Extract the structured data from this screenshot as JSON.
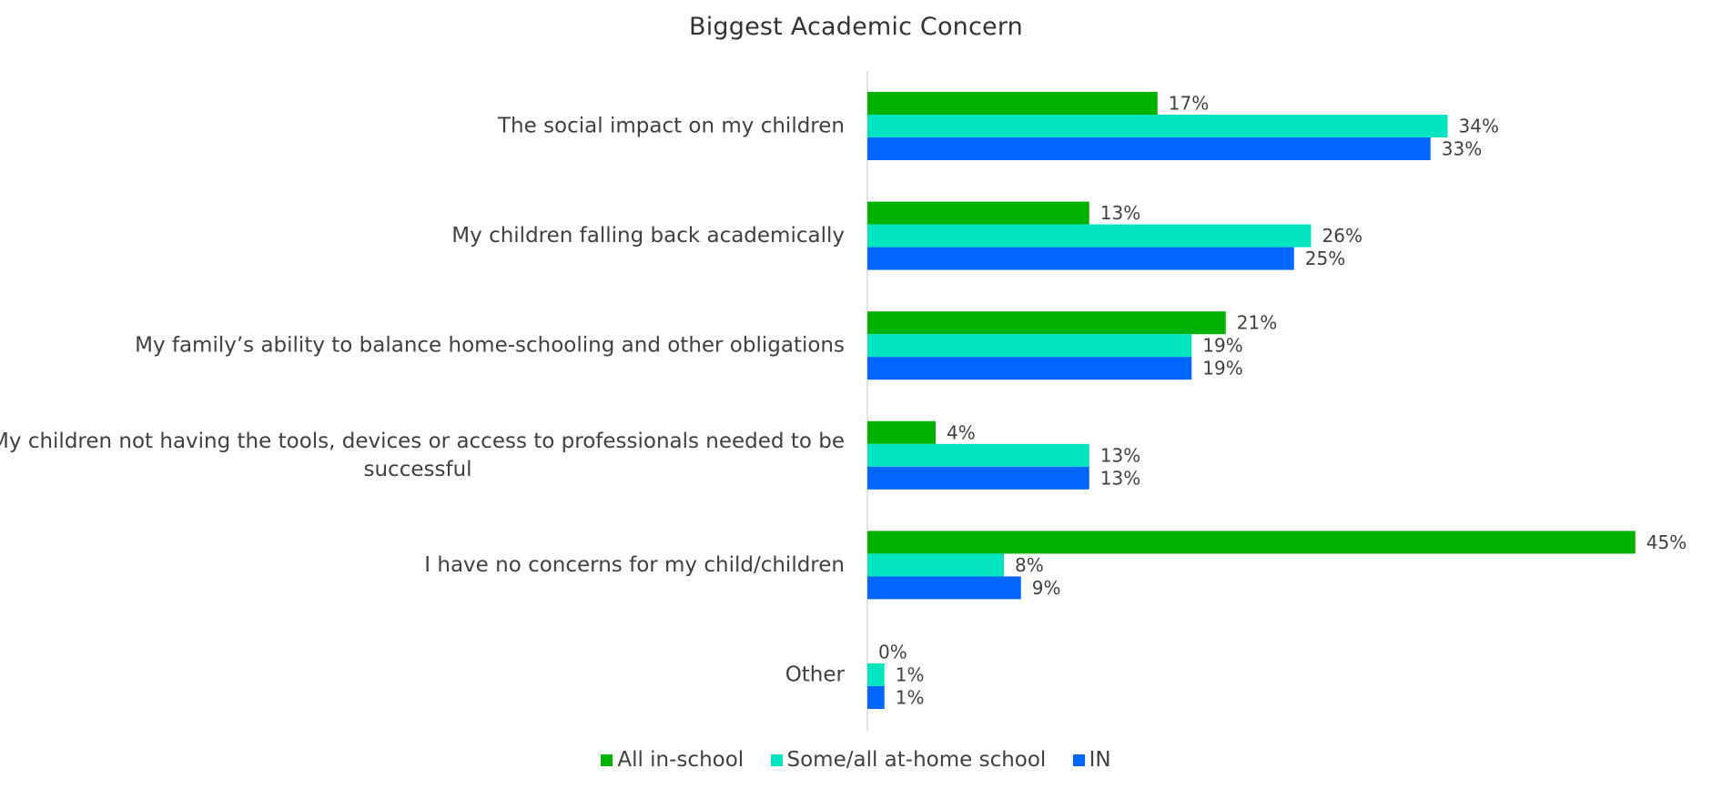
{
  "chart_data": {
    "type": "bar",
    "orientation": "horizontal",
    "title": "Biggest Academic Concern",
    "categories": [
      "The social impact on my children",
      "My children falling back academically",
      "My family’s ability to balance home-schooling and other obligations",
      "My children not having the tools, devices or access to professionals needed to be successful",
      "I have no concerns for my child/children",
      "Other"
    ],
    "category_lines": [
      [
        "The social impact on my children"
      ],
      [
        "My children falling back academically"
      ],
      [
        "My family’s ability to balance home-schooling and other obligations"
      ],
      [
        "My children not having the tools, devices or access to professionals needed to be",
        "successful"
      ],
      [
        "I have no concerns for my child/children"
      ],
      [
        "Other"
      ]
    ],
    "series": [
      {
        "name": "All in-school",
        "color": "#00b200",
        "values": [
          17,
          13,
          21,
          4,
          45,
          0
        ]
      },
      {
        "name": "Some/all at-home school",
        "color": "#00e5bf",
        "values": [
          34,
          26,
          19,
          13,
          8,
          1
        ]
      },
      {
        "name": "IN",
        "color": "#0066ff",
        "values": [
          33,
          25,
          19,
          13,
          9,
          1
        ]
      }
    ],
    "value_suffix": "%",
    "xlim": [
      0,
      50
    ],
    "grid": false,
    "legend_position": "bottom"
  }
}
